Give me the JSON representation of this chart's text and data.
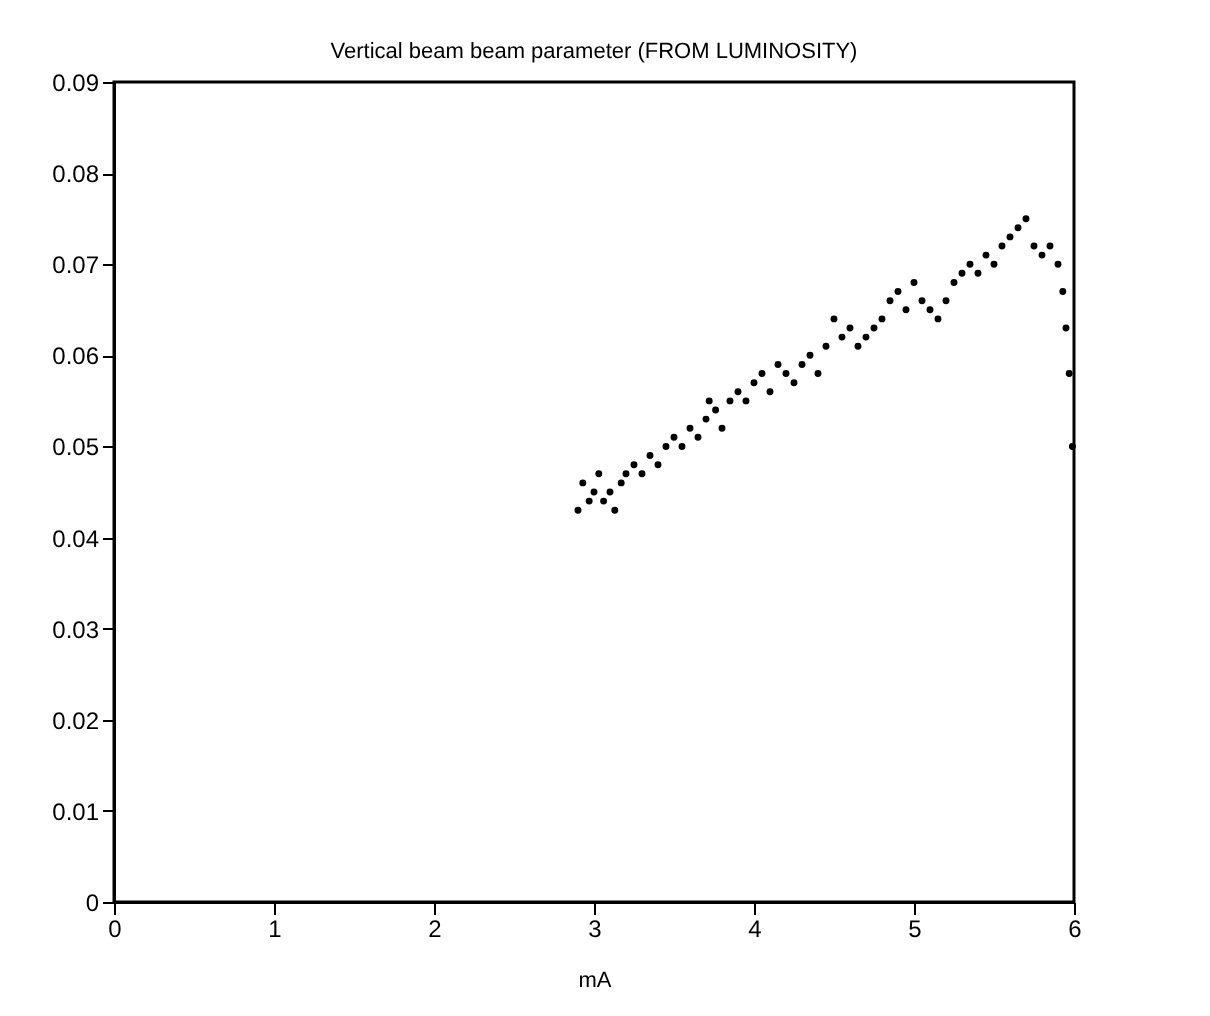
{
  "chart_data": {
    "type": "scatter",
    "title": "Vertical beam beam parameter (FROM LUMINOSITY)",
    "xlabel": "mA",
    "x": [
      2.9,
      2.93,
      2.97,
      3.0,
      3.03,
      3.06,
      3.1,
      3.13,
      3.17,
      3.2,
      3.25,
      3.3,
      3.35,
      3.4,
      3.45,
      3.5,
      3.55,
      3.6,
      3.65,
      3.7,
      3.72,
      3.76,
      3.8,
      3.85,
      3.9,
      3.95,
      4.0,
      4.05,
      4.1,
      4.15,
      4.2,
      4.25,
      4.3,
      4.35,
      4.4,
      4.45,
      4.5,
      4.55,
      4.6,
      4.65,
      4.7,
      4.75,
      4.8,
      4.85,
      4.9,
      4.95,
      5.0,
      5.05,
      5.1,
      5.15,
      5.2,
      5.25,
      5.3,
      5.35,
      5.4,
      5.45,
      5.5,
      5.55,
      5.6,
      5.65,
      5.7,
      5.75,
      5.8,
      5.85,
      5.9,
      5.93,
      5.95,
      5.97,
      5.99
    ],
    "series": [
      {
        "color": "#000000",
        "values": [
          0.043,
          0.046,
          0.044,
          0.045,
          0.047,
          0.044,
          0.045,
          0.043,
          0.046,
          0.047,
          0.048,
          0.047,
          0.049,
          0.048,
          0.05,
          0.051,
          0.05,
          0.052,
          0.051,
          0.053,
          0.055,
          0.054,
          0.052,
          0.055,
          0.056,
          0.055,
          0.057,
          0.058,
          0.056,
          0.059,
          0.058,
          0.057,
          0.059,
          0.06,
          0.058,
          0.061,
          0.064,
          0.062,
          0.063,
          0.061,
          0.062,
          0.063,
          0.064,
          0.066,
          0.067,
          0.065,
          0.068,
          0.066,
          0.065,
          0.064,
          0.066,
          0.068,
          0.069,
          0.07,
          0.069,
          0.071,
          0.07,
          0.072,
          0.073,
          0.074,
          0.075,
          0.072,
          0.071,
          0.072,
          0.07,
          0.067,
          0.063,
          0.058,
          0.05
        ]
      }
    ],
    "xlim": [
      0,
      6
    ],
    "xticks": [
      0,
      1,
      2,
      3,
      4,
      5,
      6
    ],
    "ylim": [
      0,
      0.09
    ],
    "yticks": [
      0,
      0.01,
      0.02,
      0.03,
      0.04,
      0.05,
      0.06,
      0.07,
      0.08,
      0.09
    ],
    "grid": false,
    "marker": "circle"
  }
}
